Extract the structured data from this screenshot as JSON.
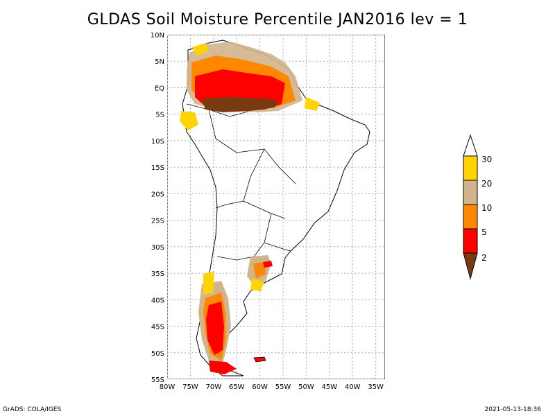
{
  "title": "GLDAS Soil Moisture Percentile JAN2016 lev = 1",
  "footer": {
    "left": "GrADS: COLA/IGES",
    "right": "2021-05-13-18:36"
  },
  "map": {
    "lat_labels": [
      "10N",
      "5N",
      "EQ",
      "5S",
      "10S",
      "15S",
      "20S",
      "25S",
      "30S",
      "35S",
      "40S",
      "45S",
      "50S",
      "55S"
    ],
    "lon_labels": [
      "80W",
      "75W",
      "70W",
      "65W",
      "60W",
      "55W",
      "50W",
      "45W",
      "40W",
      "35W"
    ],
    "lat_range": [
      -55,
      10
    ],
    "lon_range": [
      -80,
      -33
    ]
  },
  "legend": {
    "labels": [
      "30",
      "20",
      "10",
      "5",
      "2"
    ],
    "colors": {
      "gt30": "#ffffff",
      "20_30": "#ffd400",
      "10_20": "#d2b48c",
      "5_10": "#ff8800",
      "2_5": "#ff0000",
      "lt2": "#7a3a10"
    }
  }
}
